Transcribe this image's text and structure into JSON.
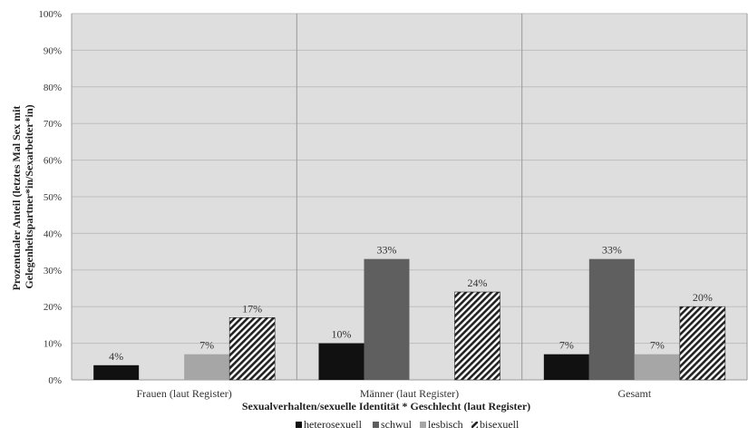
{
  "chart_data": {
    "type": "bar",
    "categories": [
      "Frauen (laut Register)",
      "Männer (laut Register)",
      "Gesamt"
    ],
    "series": [
      {
        "name": "heterosexuell",
        "values": [
          4,
          10,
          7
        ],
        "labels": [
          "4%",
          "10%",
          "7%"
        ],
        "color": "#111111",
        "pattern": "solid"
      },
      {
        "name": "schwul",
        "values": [
          null,
          33,
          33
        ],
        "labels": [
          null,
          "33%",
          "33%"
        ],
        "color": "#5f5f5f",
        "pattern": "solid"
      },
      {
        "name": "lesbisch",
        "values": [
          7,
          null,
          7
        ],
        "labels": [
          "7%",
          null,
          "7%"
        ],
        "color": "#a6a6a6",
        "pattern": "solid"
      },
      {
        "name": "bisexuell",
        "values": [
          17,
          24,
          20
        ],
        "labels": [
          "17%",
          "24%",
          "20%"
        ],
        "color": "#222222",
        "pattern": "diagonal-hatch"
      }
    ],
    "xlabel": "Sexualverhalten/sexuelle Identität * Geschlecht (laut Register)",
    "ylabel_lines": [
      "Prozentualer Anteil (letztes Mal Sex mit",
      "Gelegenheitspartner*in/Sexarbeiter*in)"
    ],
    "ylim": [
      0,
      100
    ],
    "yticks": [
      0,
      10,
      20,
      30,
      40,
      50,
      60,
      70,
      80,
      90,
      100
    ],
    "ytick_labels": [
      "0%",
      "10%",
      "20%",
      "30%",
      "40%",
      "50%",
      "60%",
      "70%",
      "80%",
      "90%",
      "100%"
    ],
    "legend_position": "bottom",
    "grid": true,
    "plot_background": "#dedede"
  }
}
